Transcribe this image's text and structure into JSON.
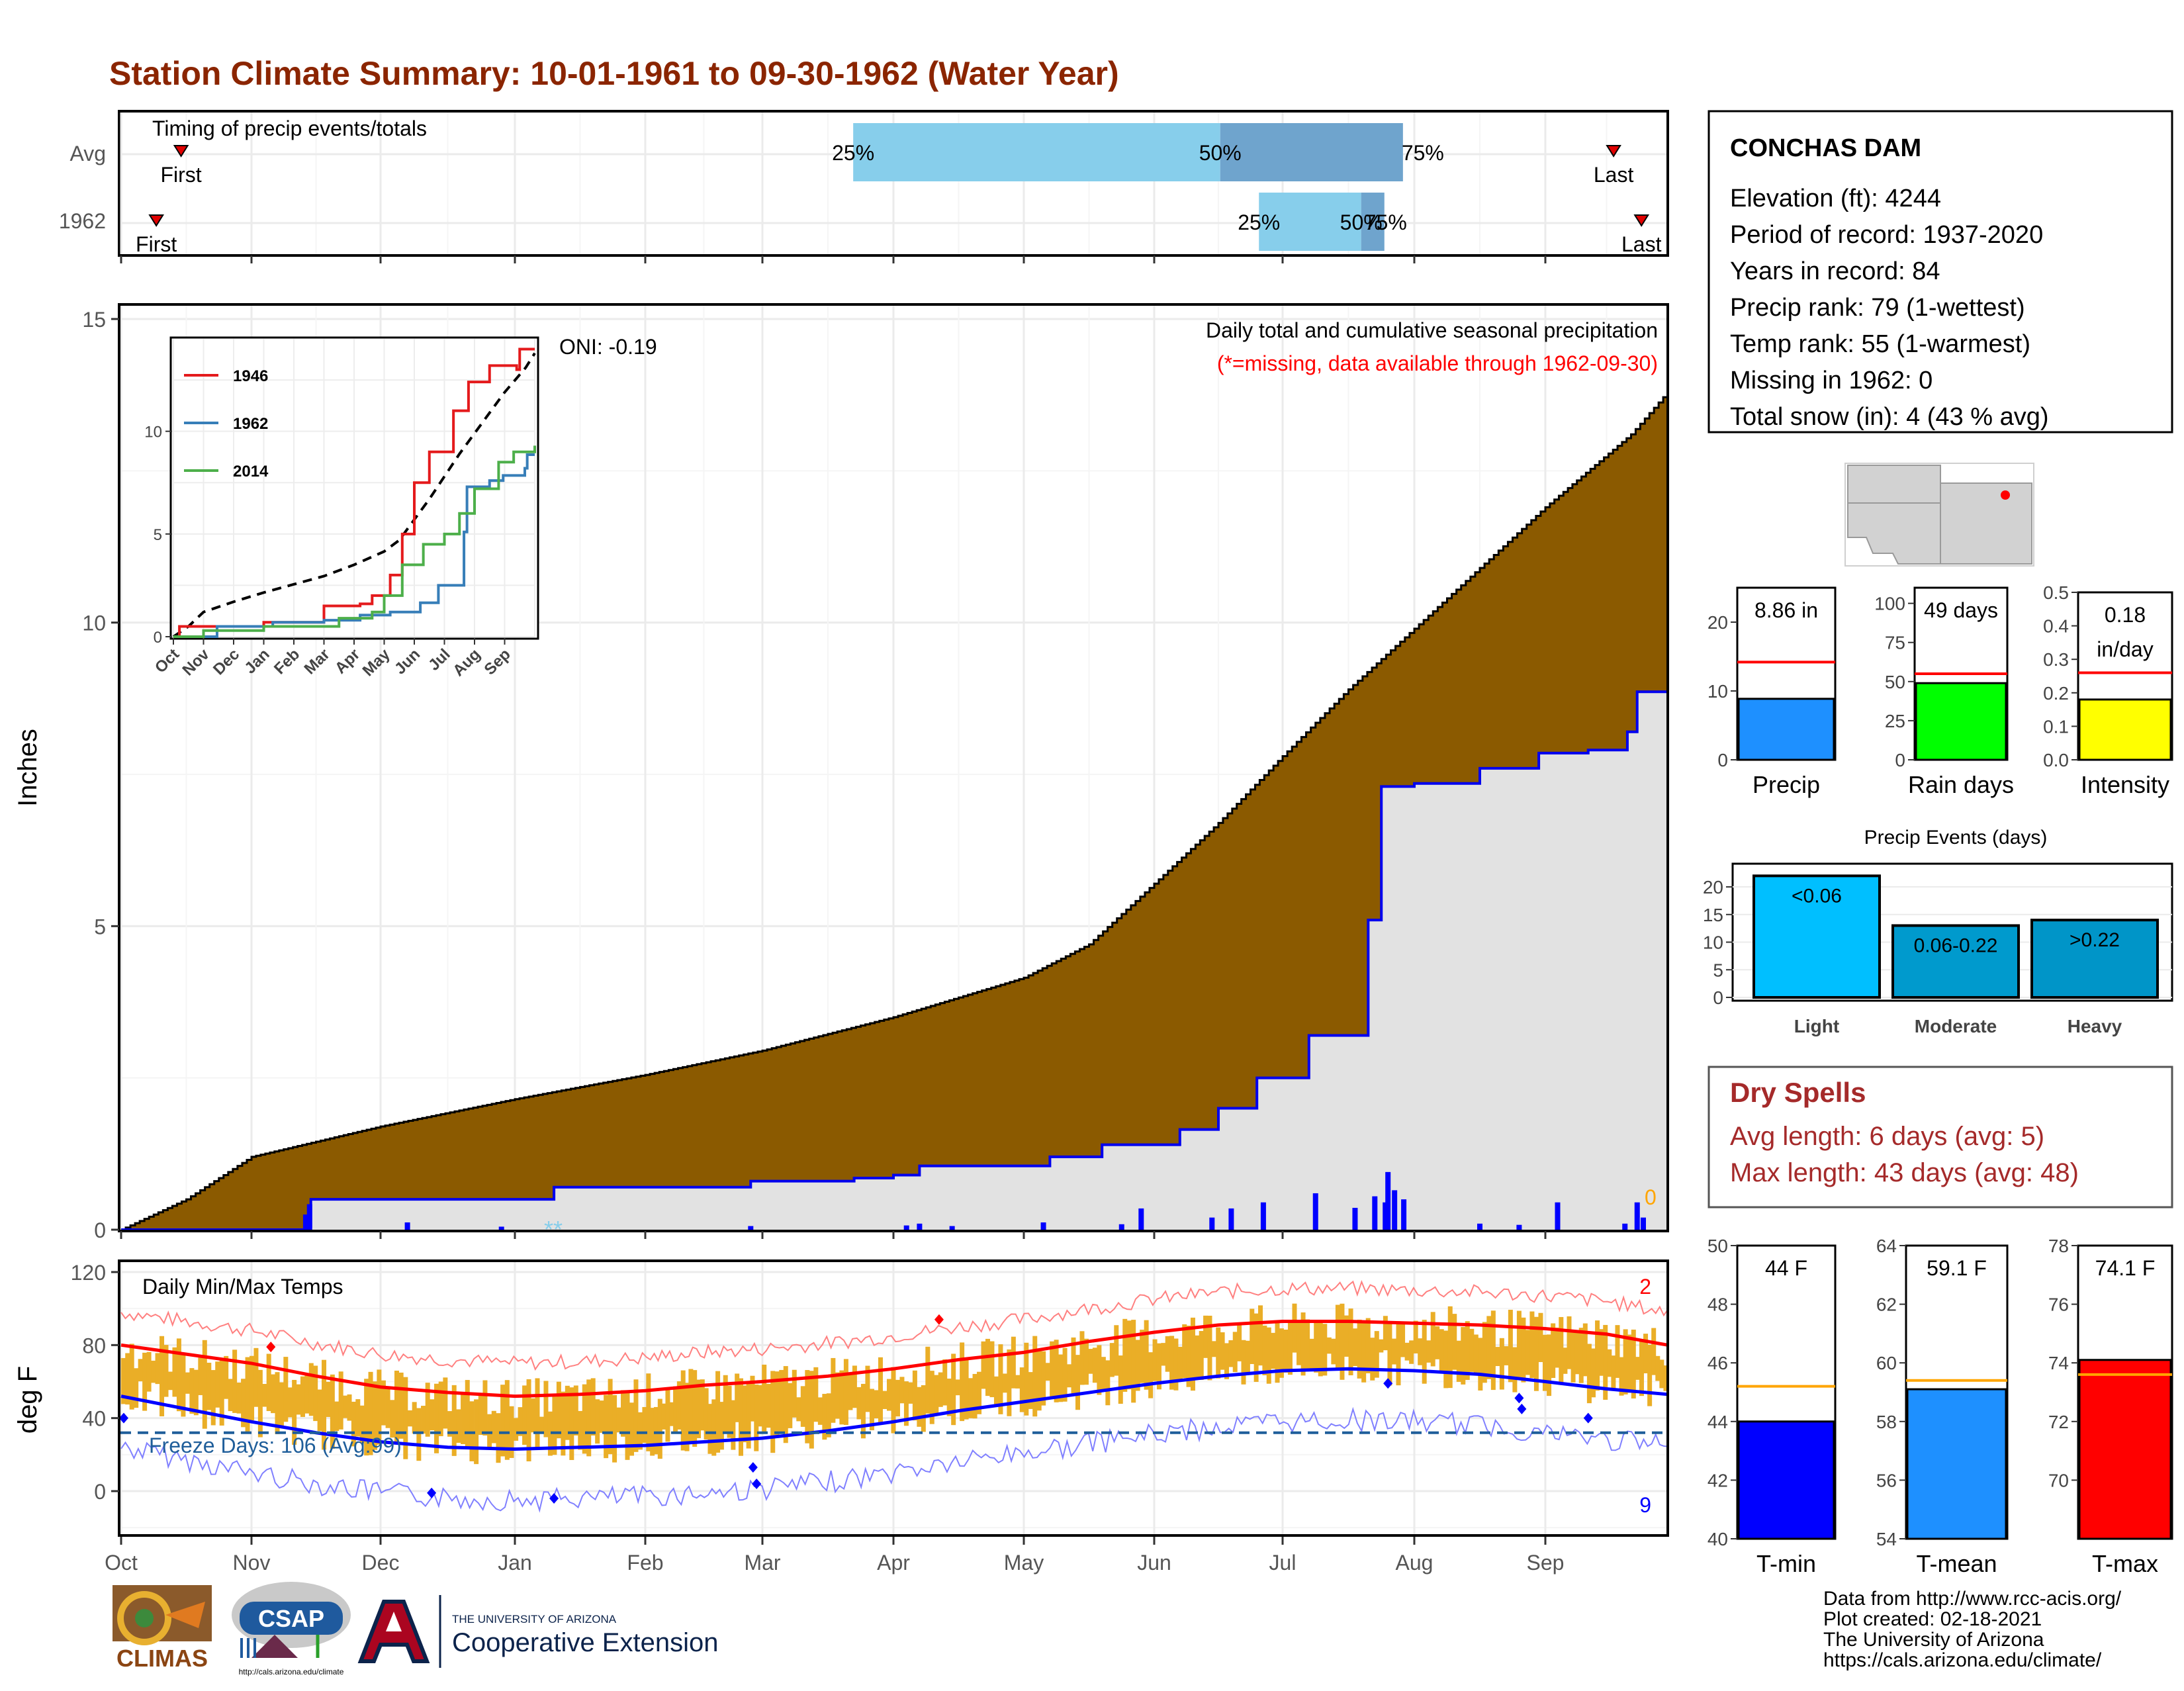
{
  "title": "Station Climate Summary: 10-01-1961 to 09-30-1962 (Water Year)",
  "colors": {
    "title": "#8B2500",
    "brown": "#8B5A00",
    "cum_line": "#0000EE",
    "gray_fill": "#E2E2E2",
    "light_blue": "#87CEEB",
    "steel_blue": "#6FA4CD",
    "orange": "#EAAE27",
    "red": "#FF0000",
    "dry_red": "#A52A2A",
    "freeze_blue": "#1F5E9A"
  },
  "timing": {
    "label": "Timing of precip events/totals",
    "rows": [
      "Avg",
      "1962"
    ],
    "first_label": "First",
    "last_label": "Last",
    "avg": {
      "first": 0.04,
      "p25": 0.474,
      "p50": 0.711,
      "p75": 0.829,
      "last": 0.965
    },
    "year": {
      "first": 0.024,
      "p25": 0.736,
      "p50": 0.802,
      "p75": 0.817,
      "last": 0.983
    },
    "pct_labels": [
      "25%",
      "50%",
      "75%"
    ]
  },
  "months": [
    "Oct",
    "Nov",
    "Dec",
    "Jan",
    "Feb",
    "Mar",
    "Apr",
    "May",
    "Jun",
    "Jul",
    "Aug",
    "Sep"
  ],
  "precip": {
    "ylabel": "Inches",
    "yticks": [
      "0",
      "5",
      "10",
      "15"
    ],
    "title_line": "Daily total and cumulative seasonal precipitation",
    "missing_line": "(*=missing, data available through 1962-09-30)",
    "oni": "ONI: -0.19",
    "missing_count": "0",
    "missing_marks": "**"
  },
  "inset": {
    "legend": [
      "1946",
      "1962",
      "2014"
    ],
    "legend_colors": [
      "#E41A1C",
      "#377EB8",
      "#4DAF4A"
    ],
    "yticks": [
      "0",
      "5",
      "10"
    ],
    "months": [
      "Oct",
      "Nov",
      "Dec",
      "Jan",
      "Feb",
      "Mar",
      "Apr",
      "May",
      "Jun",
      "Jul",
      "Aug",
      "Sep"
    ]
  },
  "temp": {
    "title": "Daily Min/Max Temps",
    "ylabel": "deg F",
    "yticks": [
      "0",
      "40",
      "80",
      "120"
    ],
    "freeze_label": "Freeze Days: 106 (Avg:99)",
    "high_count": "2",
    "low_count": "9"
  },
  "station": {
    "name": "CONCHAS DAM",
    "lines": [
      "Elevation (ft): 4244",
      "Period of record: 1937-2020",
      "Years in record: 84",
      "Precip rank: 79 (1-wettest)",
      "Temp rank: 55 (1-warmest)",
      "Missing in 1962: 0",
      "Total snow (in): 4 (43 % avg)"
    ]
  },
  "summary_bars": {
    "precip": {
      "value": 8.86,
      "avg": 14.2,
      "label": "8.86 in",
      "name": "Precip",
      "ymax": 25,
      "ticks": [
        "0",
        "10",
        "20"
      ],
      "color": "#1E90FF"
    },
    "rain_days": {
      "value": 49,
      "avg": 55,
      "label": "49 days",
      "name": "Rain days",
      "ymax": 110,
      "ticks": [
        "0",
        "25",
        "50",
        "75",
        "100"
      ],
      "color": "#00FF00"
    },
    "intensity": {
      "value": 0.18,
      "avg": 0.26,
      "label1": "0.18",
      "label2": "in/day",
      "name": "Intensity",
      "ymax": 0.5,
      "ticks": [
        "0.0",
        "0.1",
        "0.2",
        "0.3",
        "0.4",
        "0.5"
      ],
      "color": "#FFFF00"
    }
  },
  "precip_events": {
    "title": "Precip Events (days)",
    "categories": [
      "Light",
      "Moderate",
      "Heavy"
    ],
    "bar_labels": [
      "<0.06",
      "0.06-0.22",
      ">0.22"
    ],
    "values": [
      22,
      13,
      14
    ],
    "colors": [
      "#00BFFF",
      "#009ACD",
      "#0095C8"
    ],
    "ticks": [
      "0",
      "5",
      "10",
      "15",
      "20"
    ]
  },
  "dry_spells": {
    "title": "Dry Spells",
    "avg_line": "Avg length: 6 days (avg: 5)",
    "max_line": "Max length: 43 days (avg: 48)"
  },
  "temp_bars": {
    "tmin": {
      "value": 44,
      "avg": 45.2,
      "label": "44 F",
      "name": "T-min",
      "ymin": 40,
      "ymax": 50,
      "ticks": [
        "40",
        "42",
        "44",
        "46",
        "48",
        "50"
      ],
      "color": "#0000FF"
    },
    "tmean": {
      "value": 59.1,
      "avg": 59.4,
      "label": "59.1 F",
      "name": "T-mean",
      "ymin": 54,
      "ymax": 64,
      "ticks": [
        "54",
        "56",
        "58",
        "60",
        "62",
        "64"
      ],
      "color": "#1E90FF"
    },
    "tmax": {
      "value": 74.1,
      "avg": 73.6,
      "label": "74.1 F",
      "name": "T-max",
      "ymin": 68,
      "ymax": 78,
      "ticks": [
        "70",
        "72",
        "74",
        "76",
        "78"
      ],
      "color": "#FF0000"
    }
  },
  "footer": {
    "lines": [
      "Data from http://www.rcc-acis.org/",
      "Plot created: 02-18-2021",
      "The University of Arizona",
      "https://cals.arizona.edu/climate/"
    ],
    "logo_climas": "CLIMAS",
    "logo_csap": "CSAP",
    "logo_csap_url": "http://cals.arizona.edu/climate",
    "ua_small": "THE UNIVERSITY OF ARIZONA",
    "ua_large": "Cooperative Extension"
  },
  "chart_data": {
    "type": "area",
    "title": "Daily total and cumulative seasonal precipitation",
    "ylabel": "Inches",
    "ylim": [
      0,
      15
    ],
    "months": [
      "Oct",
      "Nov",
      "Dec",
      "Jan",
      "Feb",
      "Mar",
      "Apr",
      "May",
      "Jun",
      "Jul",
      "Aug",
      "Sep"
    ],
    "series": [
      {
        "name": "Avg cumulative",
        "x_month": [
          0,
          0.5,
          1,
          2,
          3,
          4,
          5,
          6,
          7,
          7.5,
          8,
          8.5,
          9,
          9.5,
          10,
          10.5,
          11,
          11.7,
          12
        ],
        "y": [
          0,
          0.5,
          1.2,
          1.7,
          2.15,
          2.55,
          2.95,
          3.5,
          4.15,
          4.7,
          5.7,
          6.7,
          7.8,
          8.9,
          9.9,
          10.9,
          11.9,
          13.1,
          13.8
        ]
      },
      {
        "name": "1962 cumulative",
        "x_month": [
          0,
          1.45,
          1.46,
          3.3,
          4.9,
          5.7,
          6.0,
          6.2,
          7.2,
          7.6,
          8.2,
          8.5,
          8.8,
          9.2,
          9.65,
          9.75,
          10.0,
          10.5,
          10.95,
          11.35,
          11.67,
          11.75,
          12
        ],
        "y": [
          0,
          0.05,
          0.5,
          0.7,
          0.8,
          0.85,
          0.9,
          1.05,
          1.2,
          1.4,
          1.65,
          2.0,
          2.5,
          3.2,
          5.1,
          7.3,
          7.35,
          7.6,
          7.85,
          7.9,
          8.2,
          8.86,
          8.86
        ]
      }
    ],
    "daily_bars": [
      {
        "x_month": 1.45,
        "y": 0.42
      },
      {
        "x_month": 1.42,
        "y": 0.25
      },
      {
        "x_month": 2.2,
        "y": 0.12
      },
      {
        "x_month": 2.9,
        "y": 0.05
      },
      {
        "x_month": 4.9,
        "y": 0.06
      },
      {
        "x_month": 6.1,
        "y": 0.07
      },
      {
        "x_month": 6.2,
        "y": 0.1
      },
      {
        "x_month": 6.45,
        "y": 0.06
      },
      {
        "x_month": 7.15,
        "y": 0.12
      },
      {
        "x_month": 7.75,
        "y": 0.09
      },
      {
        "x_month": 7.9,
        "y": 0.35
      },
      {
        "x_month": 8.45,
        "y": 0.2
      },
      {
        "x_month": 8.6,
        "y": 0.35
      },
      {
        "x_month": 8.85,
        "y": 0.45
      },
      {
        "x_month": 9.25,
        "y": 0.6
      },
      {
        "x_month": 9.55,
        "y": 0.36
      },
      {
        "x_month": 9.7,
        "y": 0.55
      },
      {
        "x_month": 9.78,
        "y": 0.45
      },
      {
        "x_month": 9.8,
        "y": 0.95
      },
      {
        "x_month": 9.85,
        "y": 0.65
      },
      {
        "x_month": 9.92,
        "y": 0.5
      },
      {
        "x_month": 10.5,
        "y": 0.1
      },
      {
        "x_month": 10.8,
        "y": 0.08
      },
      {
        "x_month": 11.1,
        "y": 0.45
      },
      {
        "x_month": 11.65,
        "y": 0.1
      },
      {
        "x_month": 11.75,
        "y": 0.45
      },
      {
        "x_month": 11.8,
        "y": 0.2
      }
    ],
    "temperature": {
      "ylim": [
        -30,
        120
      ],
      "avg_max": {
        "x_month": [
          0,
          0.5,
          1,
          1.5,
          2,
          2.5,
          3,
          3.5,
          4,
          4.5,
          5,
          5.5,
          6,
          6.5,
          7,
          7.5,
          8,
          8.5,
          9,
          9.5,
          10,
          10.5,
          11,
          11.5,
          12
        ],
        "y": [
          80,
          75,
          70,
          63,
          57,
          54,
          52,
          53,
          55,
          58,
          60,
          63,
          67,
          72,
          76,
          82,
          87,
          91,
          93,
          93,
          92,
          91,
          89,
          86,
          80
        ]
      },
      "avg_min": {
        "x_month": [
          0,
          0.5,
          1,
          1.5,
          2,
          2.5,
          3,
          3.5,
          4,
          4.5,
          5,
          5.5,
          6,
          6.5,
          7,
          7.5,
          8,
          8.5,
          9,
          9.5,
          10,
          10.5,
          11,
          11.5,
          12
        ],
        "y": [
          52,
          45,
          38,
          32,
          27,
          24,
          23,
          24,
          25,
          27,
          29,
          33,
          38,
          44,
          49,
          54,
          59,
          63,
          66,
          67,
          66,
          64,
          60,
          56,
          53
        ]
      },
      "freeze_line": 32,
      "high_count": 2,
      "low_count": 9
    }
  }
}
